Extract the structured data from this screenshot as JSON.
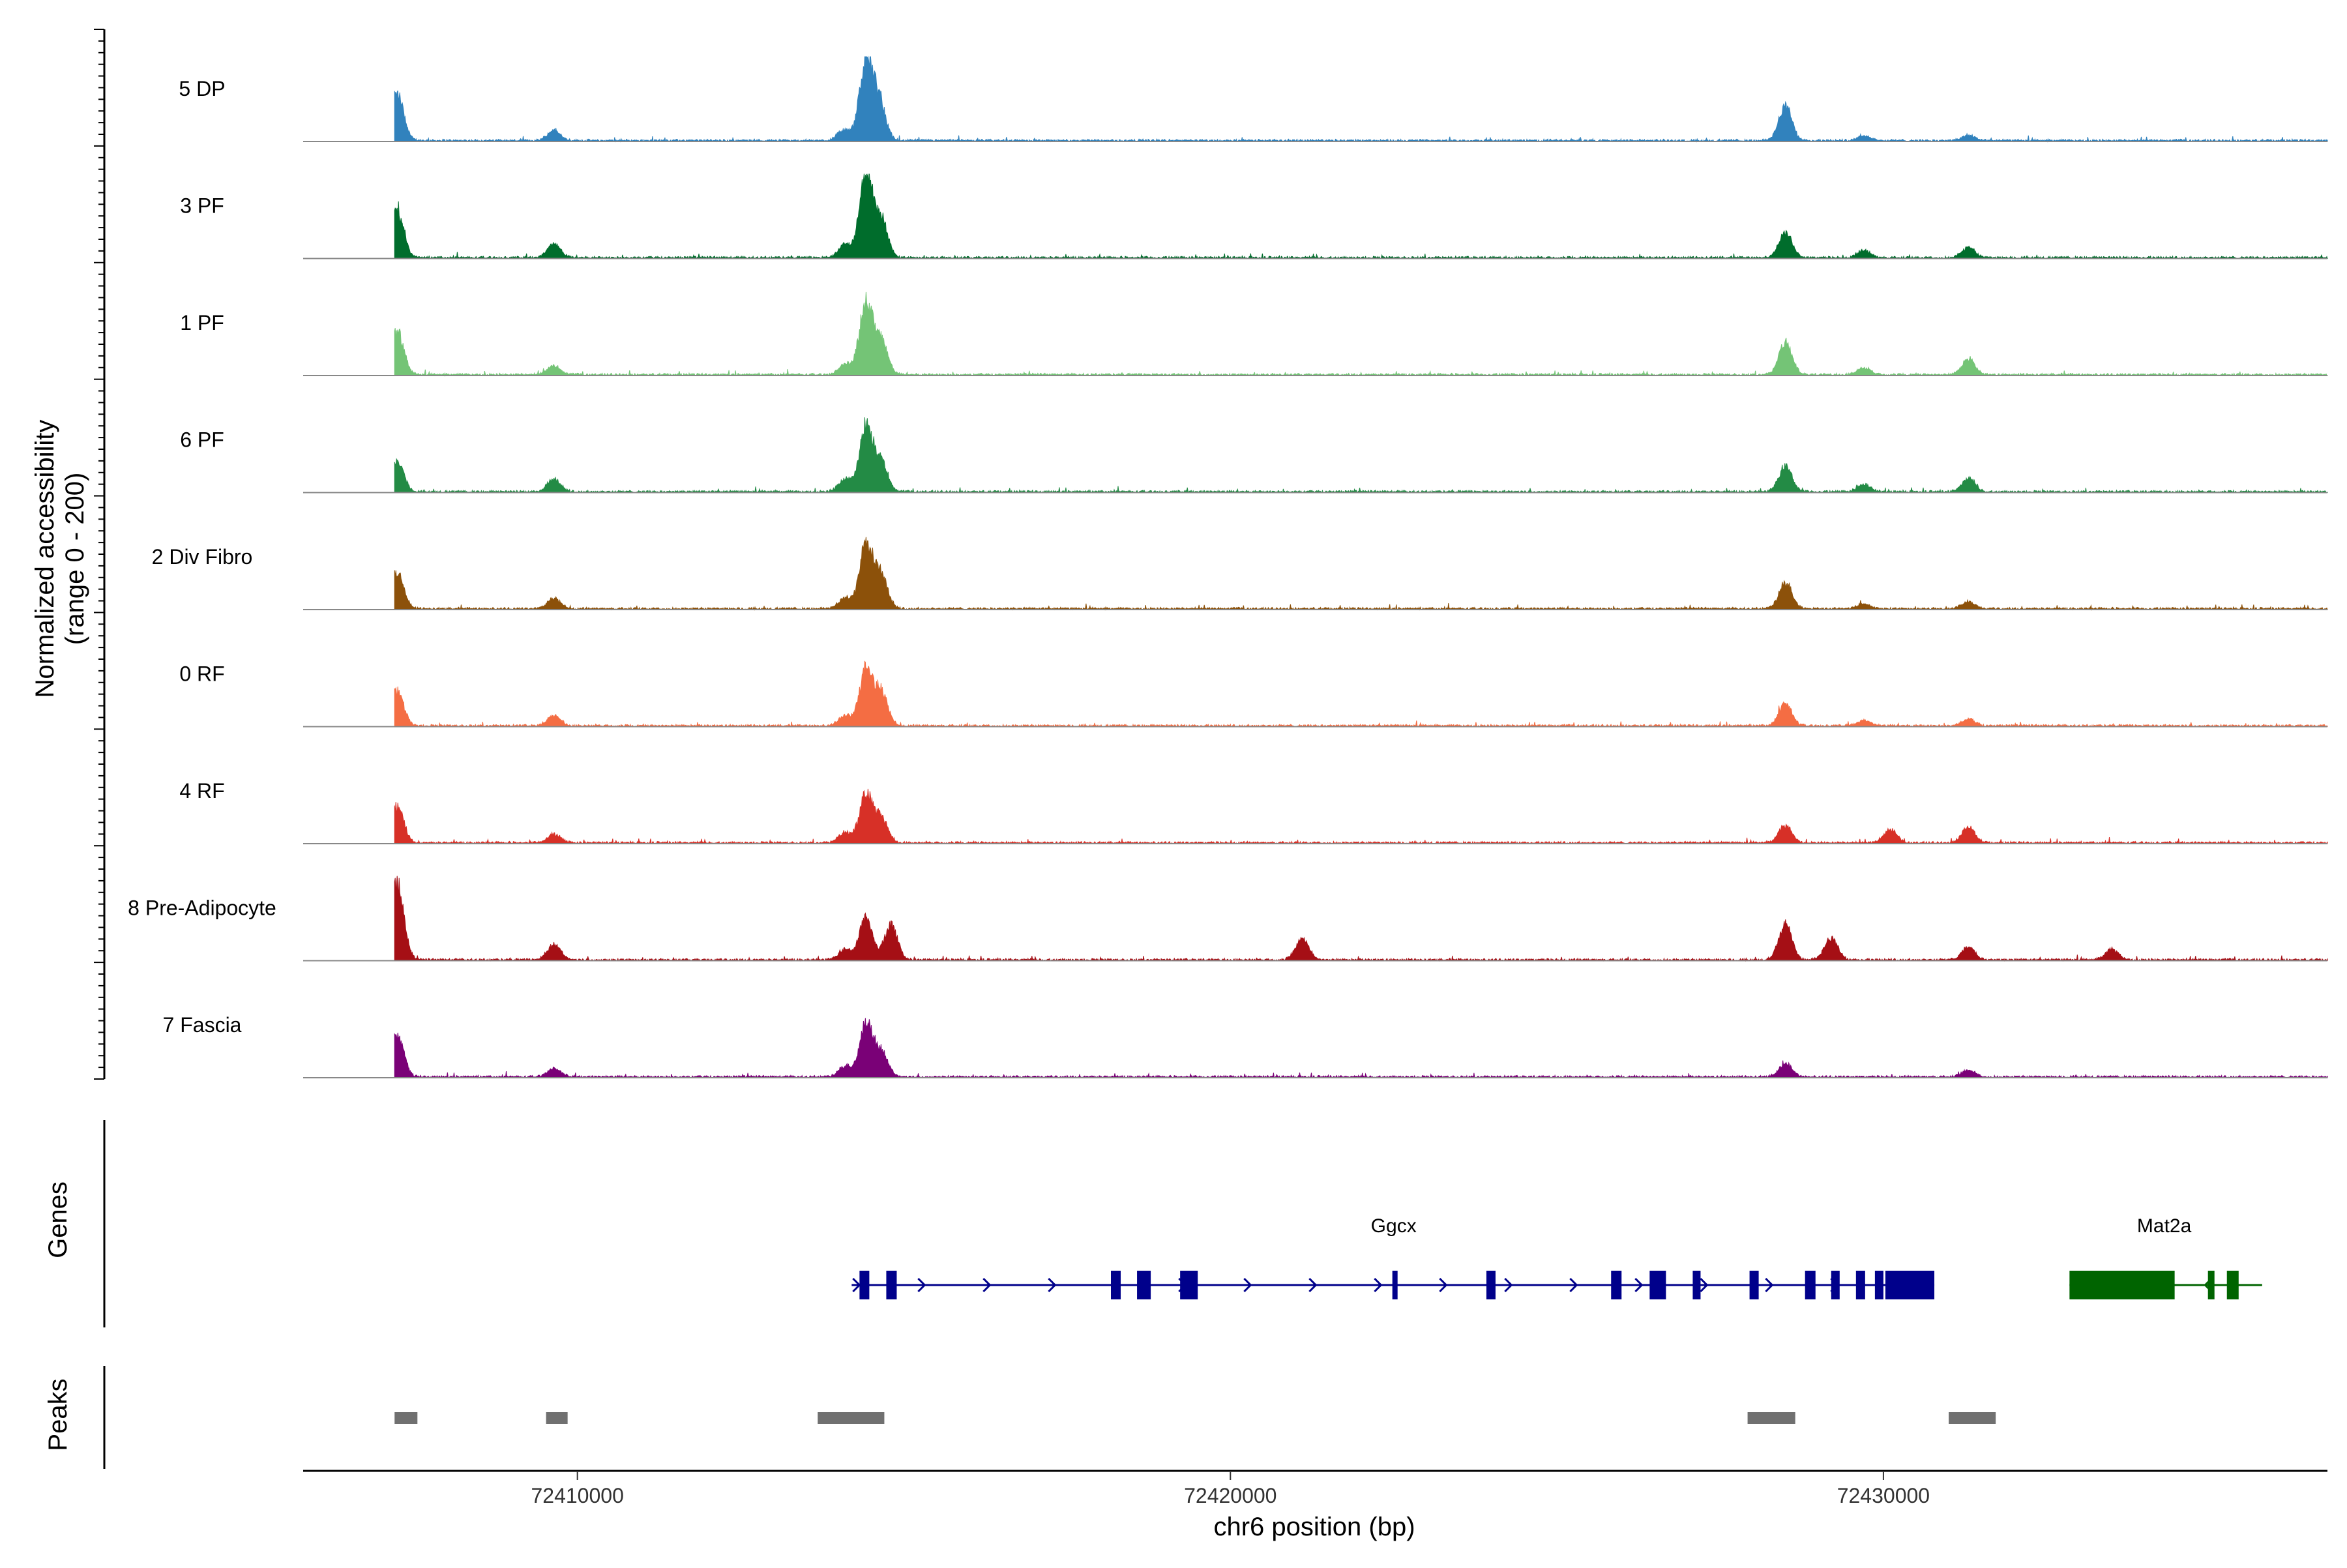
{
  "chart_data": {
    "type": "area",
    "title": "",
    "ylabel_line1": "Normalized accessibility",
    "ylabel_line2": "(range 0 - 200)",
    "xlabel": "chr6 position (bp)",
    "xlim": [
      72405800,
      72436800
    ],
    "ylim": [
      0,
      200
    ],
    "xticks": [
      72410000,
      72420000,
      72430000
    ],
    "xtick_labels": [
      "72410000",
      "72420000",
      "72430000"
    ],
    "data_extent": [
      72407200,
      72436800
    ],
    "peak_locus_note": "peak heights as fraction of track height (0-1)",
    "series": [
      {
        "name": "5 DP",
        "color": "#3182BD",
        "peaks": [
          [
            72407240,
            0.55
          ],
          [
            72409640,
            0.12
          ],
          [
            72414080,
            0.12
          ],
          [
            72414420,
            0.95
          ],
          [
            72414620,
            0.45
          ],
          [
            72428500,
            0.4
          ],
          [
            72429700,
            0.06
          ],
          [
            72431300,
            0.06
          ]
        ]
      },
      {
        "name": "3 PF",
        "color": "#006D2C",
        "peaks": [
          [
            72407240,
            0.55
          ],
          [
            72409640,
            0.16
          ],
          [
            72414100,
            0.15
          ],
          [
            72414420,
            0.98
          ],
          [
            72414650,
            0.45
          ],
          [
            72428500,
            0.3
          ],
          [
            72429700,
            0.08
          ],
          [
            72431300,
            0.12
          ]
        ]
      },
      {
        "name": "1 PF",
        "color": "#74C476",
        "peaks": [
          [
            72407240,
            0.5
          ],
          [
            72409640,
            0.1
          ],
          [
            72414100,
            0.12
          ],
          [
            72414420,
            0.85
          ],
          [
            72414650,
            0.4
          ],
          [
            72428500,
            0.38
          ],
          [
            72429700,
            0.08
          ],
          [
            72431300,
            0.18
          ]
        ]
      },
      {
        "name": "6 PF",
        "color": "#238B45",
        "peaks": [
          [
            72407240,
            0.35
          ],
          [
            72409640,
            0.15
          ],
          [
            72414100,
            0.15
          ],
          [
            72414420,
            0.75
          ],
          [
            72414650,
            0.35
          ],
          [
            72428500,
            0.3
          ],
          [
            72429700,
            0.08
          ],
          [
            72431300,
            0.15
          ]
        ]
      },
      {
        "name": "2 Div Fibro",
        "color": "#8C510A",
        "peaks": [
          [
            72407240,
            0.42
          ],
          [
            72409640,
            0.12
          ],
          [
            72414100,
            0.12
          ],
          [
            72414420,
            0.8
          ],
          [
            72414650,
            0.4
          ],
          [
            72428500,
            0.3
          ],
          [
            72429700,
            0.06
          ],
          [
            72431300,
            0.08
          ]
        ]
      },
      {
        "name": "0 RF",
        "color": "#F46D43",
        "peaks": [
          [
            72407240,
            0.4
          ],
          [
            72409640,
            0.12
          ],
          [
            72414100,
            0.12
          ],
          [
            72414420,
            0.65
          ],
          [
            72414650,
            0.4
          ],
          [
            72428500,
            0.25
          ],
          [
            72429700,
            0.06
          ],
          [
            72431300,
            0.08
          ]
        ]
      },
      {
        "name": "4 RF",
        "color": "#D73027",
        "peaks": [
          [
            72407240,
            0.42
          ],
          [
            72409640,
            0.1
          ],
          [
            72414100,
            0.12
          ],
          [
            72414420,
            0.55
          ],
          [
            72414650,
            0.3
          ],
          [
            72428500,
            0.2
          ],
          [
            72430100,
            0.15
          ],
          [
            72431300,
            0.18
          ]
        ]
      },
      {
        "name": "8 Pre-Adipocyte",
        "color": "#A50F15",
        "peaks": [
          [
            72407240,
            0.9
          ],
          [
            72409640,
            0.18
          ],
          [
            72414100,
            0.12
          ],
          [
            72414420,
            0.5
          ],
          [
            72414800,
            0.4
          ],
          [
            72421100,
            0.25
          ],
          [
            72428500,
            0.42
          ],
          [
            72429200,
            0.25
          ],
          [
            72431300,
            0.15
          ],
          [
            72433500,
            0.12
          ]
        ]
      },
      {
        "name": "7 Fascia",
        "color": "#7A0177",
        "peaks": [
          [
            72407240,
            0.48
          ],
          [
            72409640,
            0.1
          ],
          [
            72414100,
            0.12
          ],
          [
            72414420,
            0.62
          ],
          [
            72414650,
            0.3
          ],
          [
            72428500,
            0.15
          ],
          [
            72431300,
            0.08
          ]
        ]
      }
    ],
    "genes": [
      {
        "name": "Ggcx",
        "strand": "+",
        "color": "#00008B",
        "start": 72414200,
        "end": 72430780,
        "label_pos": 72422500,
        "exons": [
          [
            72414320,
            72414470
          ],
          [
            72414730,
            72414890
          ],
          [
            72418170,
            72418320
          ],
          [
            72418570,
            72418780
          ],
          [
            72419230,
            72419500
          ],
          [
            72422480,
            72422560
          ],
          [
            72423920,
            72424060
          ],
          [
            72425830,
            72425990
          ],
          [
            72426420,
            72426670
          ],
          [
            72427080,
            72427200
          ],
          [
            72427950,
            72428090
          ],
          [
            72428800,
            72428960
          ],
          [
            72429200,
            72429330
          ],
          [
            72429580,
            72429720
          ],
          [
            72429870,
            72430000
          ],
          [
            72430030,
            72430780
          ]
        ]
      },
      {
        "name": "Mat2a",
        "strand": "-",
        "color": "#006400",
        "start": 72432850,
        "end": 72435800,
        "label_pos": 72434300,
        "exons": [
          [
            72432850,
            72434460
          ],
          [
            72434970,
            72435070
          ],
          [
            72435260,
            72435440
          ]
        ]
      }
    ],
    "peaks_track": [
      [
        72407200,
        72407550
      ],
      [
        72409520,
        72409850
      ],
      [
        72413680,
        72414700
      ],
      [
        72427920,
        72428650
      ],
      [
        72431000,
        72431720
      ]
    ],
    "panel_labels": {
      "genes": "Genes",
      "peaks": "Peaks"
    }
  }
}
